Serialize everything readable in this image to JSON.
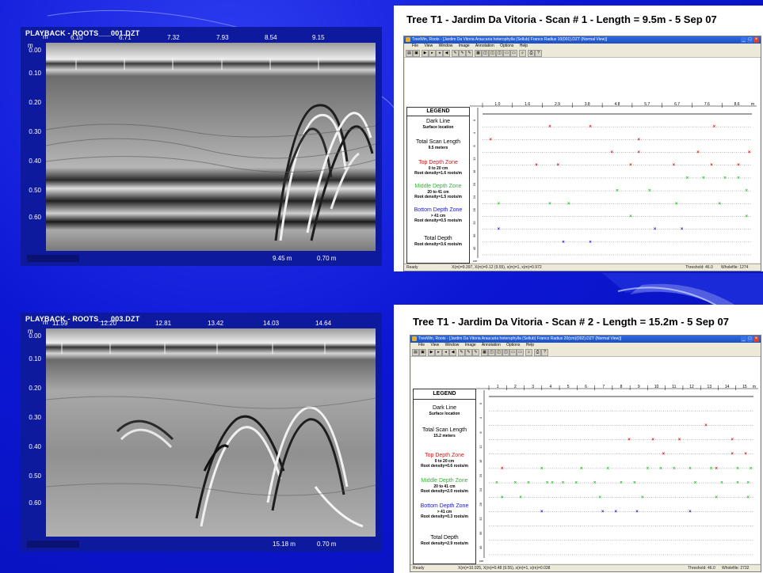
{
  "gpr_panels": [
    {
      "title": "PLAYBACK - ROOTS___001.DZT",
      "axis_unit": "m",
      "x_ticks": [
        "6.10",
        "6.71",
        "7.32",
        "7.93",
        "8.54",
        "9.15"
      ],
      "y_ticks": [
        "0.00",
        "0.10",
        "0.20",
        "0.30",
        "0.40",
        "0.50",
        "0.60"
      ],
      "footer_distance": "9.45 m",
      "footer_depth": "0.70 m"
    },
    {
      "title": "PLAYBACK - ROOTS___003.DZT",
      "axis_unit": "m",
      "x_ticks": [
        "11.59",
        "12.20",
        "12.81",
        "13.42",
        "14.03",
        "14.64"
      ],
      "y_ticks": [
        "0.00",
        "0.10",
        "0.20",
        "0.30",
        "0.40",
        "0.50",
        "0.60"
      ],
      "footer_distance": "15.18 m",
      "footer_depth": "0.70 m"
    }
  ],
  "treewin_panels": [
    {
      "title": "Tree T1 - Jardim Da Vitoria - Scan # 1 - Length = 9.5m - 5 Sep 07",
      "window_title": "TreeWin, Roots - [Jardim Da Vitoria Araucaria heterophylla (Sellub) Franco Radius 10(001).DZT (Normal View)]",
      "menu": [
        "File",
        "View",
        "Window",
        "Image",
        "Annotation",
        "Options",
        "Help"
      ],
      "status_left": "Ready",
      "status_mid": "X(m)=9.397, X(m)=0.12 (9.55), x(m)=1, x(m)=0.972",
      "status_right1": "Threshold: 46.0",
      "status_right2": "Wholefile: 1274",
      "x_labels": [
        "1.0",
        "1.6",
        "2.9",
        "3.8",
        "4.8",
        "5.7",
        "6.7",
        "7.6",
        "8.6"
      ],
      "x_unit": "m",
      "y_unit": "cm",
      "y_labels": [
        "0",
        "4",
        "8",
        "12",
        "16",
        "20",
        "24",
        "28",
        "32",
        "36",
        "40"
      ],
      "legend": {
        "heading": "LEGEND",
        "items": [
          {
            "title": "Dark Line",
            "sub": "Surface location",
            "color": "#000000"
          },
          {
            "title": "Total Scan Length",
            "sub": "9.5 meters",
            "color": "#000000"
          },
          {
            "title": "Top Depth Zone",
            "sub1": "0 to 20 cm",
            "sub2": "Root density=1.6 roots/m",
            "color": "#e01010"
          },
          {
            "title": "Middle Depth Zone",
            "sub1": "20 to 41 cm",
            "sub2": "Root density=1.5 roots/m",
            "color": "#20c020"
          },
          {
            "title": "Bottom Depth Zone",
            "sub1": "> 41 cm",
            "sub2": "Root density=0.5 roots/m",
            "color": "#1818d0"
          },
          {
            "title": "Total Depth",
            "sub": "Root density=3.6 roots/m",
            "color": "#000000"
          }
        ]
      }
    },
    {
      "title": "Tree T1 - Jardim Da Vitoria - Scan # 2 - Length = 15.2m - 5 Sep 07",
      "window_title": "TreeWin, Roots - [Jardim Da Vitoria Araucaria heterophylla (Sellub) Franco Radius 20(cm)(002).DZT (Normal View)]",
      "menu": [
        "File",
        "View",
        "Window",
        "Image",
        "Annotation",
        "Options",
        "Help"
      ],
      "status_left": "Ready",
      "status_mid": "X(m)=10.025, X(m)=0.48 (9.55), x(m)=1, x(m)=0.038",
      "status_right1": "Threshold: 46.0",
      "status_right2": "Wholefile: 2732",
      "x_labels": [
        "1",
        "2",
        "3",
        "4",
        "5",
        "6",
        "7",
        "8",
        "9",
        "10",
        "11",
        "12",
        "13",
        "14",
        "15"
      ],
      "x_unit": "m",
      "y_unit": "cm",
      "y_labels": [
        "0",
        "4",
        "8",
        "12",
        "16",
        "20",
        "24",
        "28",
        "32",
        "36",
        "40"
      ],
      "legend": {
        "heading": "LEGEND",
        "items": [
          {
            "title": "Dark Line",
            "sub": "Surface location",
            "color": "#000000"
          },
          {
            "title": "Total Scan Length",
            "sub": "15.2 meters",
            "color": "#000000"
          },
          {
            "title": "Top Depth Zone",
            "sub1": "0 to 20 cm",
            "sub2": "Root density=0.6 roots/m",
            "color": "#e01010"
          },
          {
            "title": "Middle Depth Zone",
            "sub1": "20 to 41 cm",
            "sub2": "Root density=2.0 roots/m",
            "color": "#20c020"
          },
          {
            "title": "Bottom Depth Zone",
            "sub1": "> 41 cm",
            "sub2": "Root density=0.3 roots/m",
            "color": "#1818d0"
          },
          {
            "title": "Total Depth",
            "sub": "Root density=2.9 roots/m",
            "color": "#000000"
          }
        ]
      }
    }
  ],
  "markers": [
    {
      "red": [
        [
          0.03,
          2
        ],
        [
          0.25,
          1
        ],
        [
          0.4,
          1
        ],
        [
          0.58,
          2
        ],
        [
          0.86,
          1
        ],
        [
          0.2,
          4
        ],
        [
          0.28,
          4
        ],
        [
          0.48,
          3
        ],
        [
          0.55,
          4
        ],
        [
          0.58,
          3
        ],
        [
          0.71,
          4
        ],
        [
          0.8,
          3
        ],
        [
          0.85,
          4
        ],
        [
          0.95,
          4
        ],
        [
          0.99,
          3
        ]
      ],
      "green": [
        [
          0.06,
          7
        ],
        [
          0.25,
          7
        ],
        [
          0.32,
          7
        ],
        [
          0.5,
          6
        ],
        [
          0.62,
          6
        ],
        [
          0.76,
          5
        ],
        [
          0.82,
          5
        ],
        [
          0.9,
          5
        ],
        [
          0.55,
          8
        ],
        [
          0.72,
          7
        ],
        [
          0.88,
          7
        ],
        [
          0.95,
          5
        ],
        [
          0.98,
          6
        ],
        [
          0.98,
          8
        ]
      ],
      "blue": [
        [
          0.06,
          9
        ],
        [
          0.3,
          10
        ],
        [
          0.4,
          10
        ],
        [
          0.64,
          9
        ],
        [
          0.74,
          9
        ]
      ]
    },
    {
      "red": [
        [
          0.05,
          5
        ],
        [
          0.53,
          3
        ],
        [
          0.62,
          3
        ],
        [
          0.72,
          3
        ],
        [
          0.82,
          2
        ],
        [
          0.66,
          4
        ],
        [
          0.86,
          5
        ],
        [
          0.92,
          4
        ],
        [
          0.97,
          4
        ],
        [
          0.92,
          3
        ]
      ],
      "green": [
        [
          0.03,
          6
        ],
        [
          0.1,
          6
        ],
        [
          0.15,
          6
        ],
        [
          0.2,
          5
        ],
        [
          0.24,
          6
        ],
        [
          0.28,
          6
        ],
        [
          0.35,
          5
        ],
        [
          0.4,
          6
        ],
        [
          0.45,
          5
        ],
        [
          0.5,
          6
        ],
        [
          0.55,
          6
        ],
        [
          0.6,
          5
        ],
        [
          0.65,
          5
        ],
        [
          0.7,
          5
        ],
        [
          0.76,
          5
        ],
        [
          0.84,
          5
        ],
        [
          0.88,
          6
        ],
        [
          0.94,
          5
        ],
        [
          0.98,
          6
        ],
        [
          0.05,
          7
        ],
        [
          0.12,
          7
        ],
        [
          0.22,
          6
        ],
        [
          0.33,
          6
        ],
        [
          0.42,
          7
        ],
        [
          0.58,
          7
        ],
        [
          0.78,
          6
        ],
        [
          0.86,
          7
        ],
        [
          0.94,
          6
        ],
        [
          0.98,
          7
        ],
        [
          0.99,
          5
        ]
      ],
      "blue": [
        [
          0.2,
          8
        ],
        [
          0.43,
          8
        ],
        [
          0.48,
          8
        ],
        [
          0.56,
          8
        ],
        [
          0.76,
          8
        ]
      ]
    }
  ],
  "colors": {
    "slide_bg": "#0a14c8",
    "red": "#e01010",
    "green": "#20c020",
    "blue": "#1818d0"
  }
}
